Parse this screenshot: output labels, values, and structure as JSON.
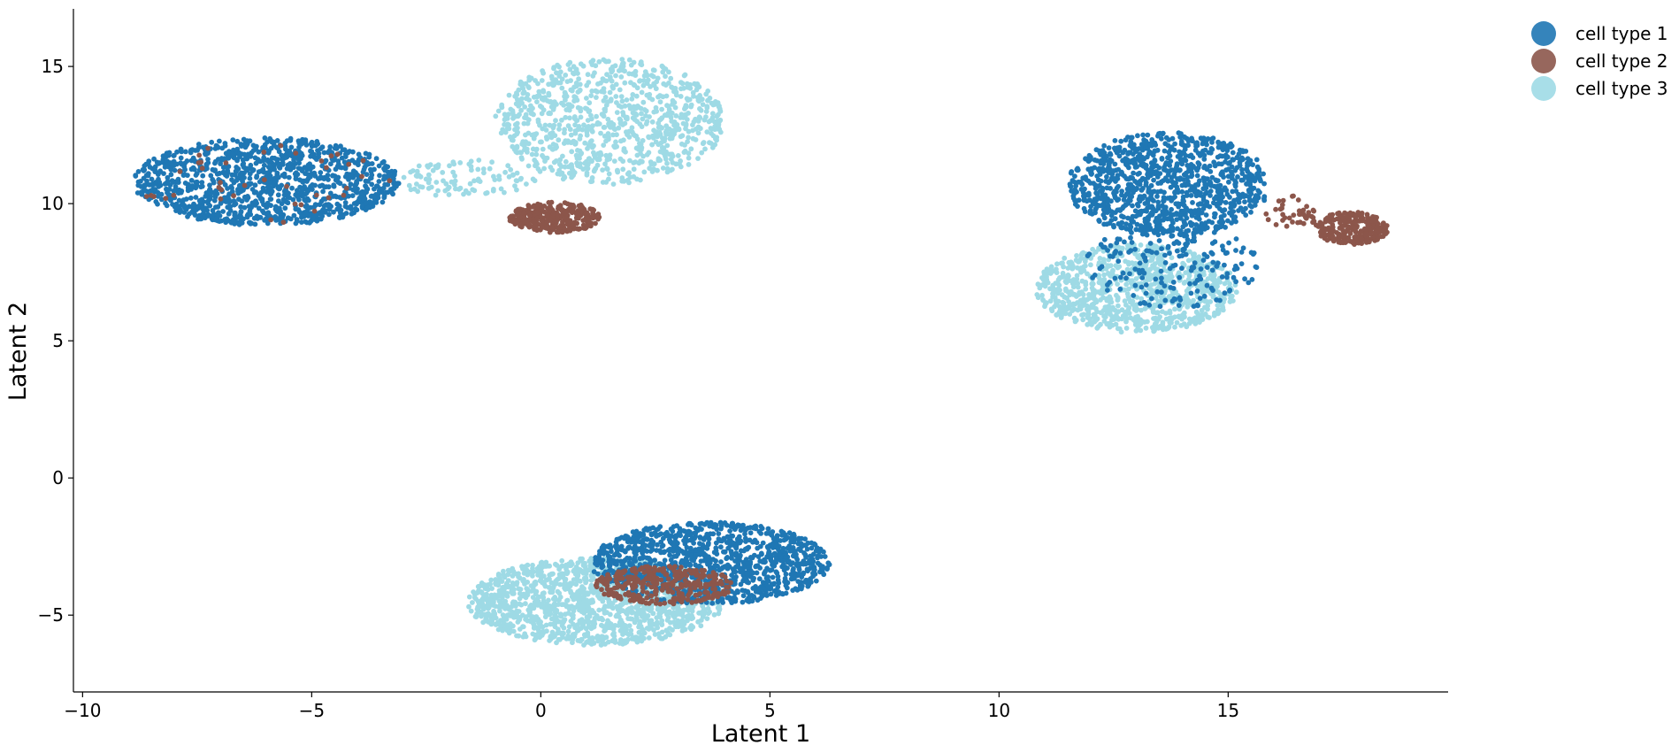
{
  "chart_data": {
    "type": "scatter",
    "title": "",
    "xlabel": "Latent 1",
    "ylabel": "Latent 2",
    "xlim": [
      -10.2,
      19.8
    ],
    "ylim": [
      -7.8,
      17.1
    ],
    "xticks": [
      -10,
      -5,
      0,
      5,
      10,
      15
    ],
    "yticks": [
      -5,
      0,
      5,
      10,
      15
    ],
    "xtick_labels": [
      "−10",
      "−5",
      "0",
      "5",
      "10",
      "15"
    ],
    "ytick_labels": [
      "−5",
      "0",
      "5",
      "10",
      "15"
    ],
    "grid": false,
    "legend_position": "outside top-right",
    "series": [
      {
        "name": "cell type 1",
        "color": "#1f77b4"
      },
      {
        "name": "cell type 2",
        "color": "#8c564b"
      },
      {
        "name": "cell type 3",
        "color": "#9edae5"
      }
    ],
    "clusters": [
      {
        "series": 0,
        "cx": -6.0,
        "cy": 10.8,
        "rx": 2.9,
        "ry": 1.6,
        "n": 1200
      },
      {
        "series": 1,
        "cx": -6.0,
        "cy": 10.8,
        "rx": 2.8,
        "ry": 1.5,
        "n": 40
      },
      {
        "series": 2,
        "cx": 1.5,
        "cy": 13.0,
        "rx": 2.5,
        "ry": 2.3,
        "n": 900
      },
      {
        "series": 2,
        "cx": -1.6,
        "cy": 10.9,
        "rx": 1.5,
        "ry": 0.7,
        "n": 100
      },
      {
        "series": 1,
        "cx": 0.3,
        "cy": 9.5,
        "rx": 1.0,
        "ry": 0.55,
        "n": 300
      },
      {
        "series": 0,
        "cx": 13.7,
        "cy": 10.7,
        "rx": 2.2,
        "ry": 1.9,
        "n": 1000
      },
      {
        "series": 2,
        "cx": 13.0,
        "cy": 6.9,
        "rx": 2.2,
        "ry": 1.6,
        "n": 900
      },
      {
        "series": 0,
        "cx": 13.8,
        "cy": 7.8,
        "rx": 1.9,
        "ry": 1.6,
        "n": 200
      },
      {
        "series": 1,
        "cx": 17.7,
        "cy": 9.1,
        "rx": 0.8,
        "ry": 0.6,
        "n": 240
      },
      {
        "series": 1,
        "cx": 16.4,
        "cy": 9.7,
        "rx": 0.6,
        "ry": 0.6,
        "n": 40
      },
      {
        "series": 2,
        "cx": 1.2,
        "cy": -4.5,
        "rx": 2.8,
        "ry": 1.6,
        "n": 1400
      },
      {
        "series": 0,
        "cx": 3.7,
        "cy": -3.1,
        "rx": 2.6,
        "ry": 1.5,
        "n": 1100
      },
      {
        "series": 1,
        "cx": 2.7,
        "cy": -3.9,
        "rx": 1.5,
        "ry": 0.7,
        "n": 300
      }
    ]
  }
}
